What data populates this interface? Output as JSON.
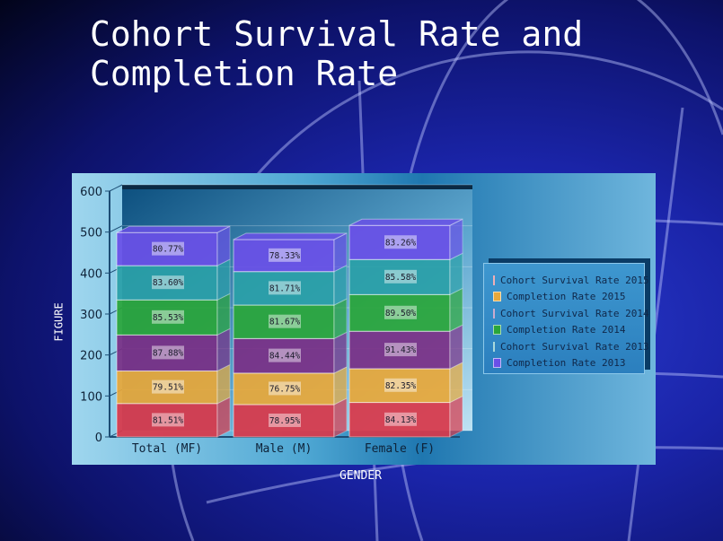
{
  "title": "Cohort Survival Rate and\nCompletion Rate",
  "chart_data": {
    "type": "bar",
    "stacked": true,
    "title": "Cohort Survival Rate and Completion Rate",
    "xlabel": "GENDER",
    "ylabel": "FIGURE",
    "ylim": [
      0,
      600
    ],
    "yticks": [
      "0",
      "100",
      "200",
      "300",
      "400",
      "500",
      "600"
    ],
    "grid": true,
    "legend_position": "right",
    "categories": [
      "Total (MF)",
      "Male (M)",
      "Female (F)"
    ],
    "series": [
      {
        "name": "Cohort Survival Rate 2015",
        "color": "#d9384a",
        "values": [
          81.51,
          78.95,
          84.13
        ],
        "labels": [
          "81.51%",
          "78.95%",
          "84.13%"
        ]
      },
      {
        "name": "Completion Rate 2015",
        "color": "#e8a83a",
        "values": [
          79.51,
          76.75,
          82.35
        ],
        "labels": [
          "79.51%",
          "76.75%",
          "82.35%"
        ]
      },
      {
        "name": "Cohort Survival Rate 2014",
        "color": "#7a2f86",
        "values": [
          87.88,
          84.44,
          91.43
        ],
        "labels": [
          "87.88%",
          "84.44%",
          "91.43%"
        ]
      },
      {
        "name": "Completion Rate 2014",
        "color": "#2aa63a",
        "values": [
          85.53,
          81.67,
          89.5
        ],
        "labels": [
          "85.53%",
          "81.67%",
          "89.50%"
        ]
      },
      {
        "name": "Cohort Survival Rate 2013",
        "color": "#2aa0a8",
        "values": [
          83.6,
          81.71,
          85.58
        ],
        "labels": [
          "83.60%",
          "81.71%",
          "85.58%"
        ]
      },
      {
        "name": "Completion Rate 2013",
        "color": "#6a50e8",
        "values": [
          80.77,
          78.33,
          83.26
        ],
        "labels": [
          "80.77%",
          "78.33%",
          "83.26%"
        ]
      }
    ]
  }
}
